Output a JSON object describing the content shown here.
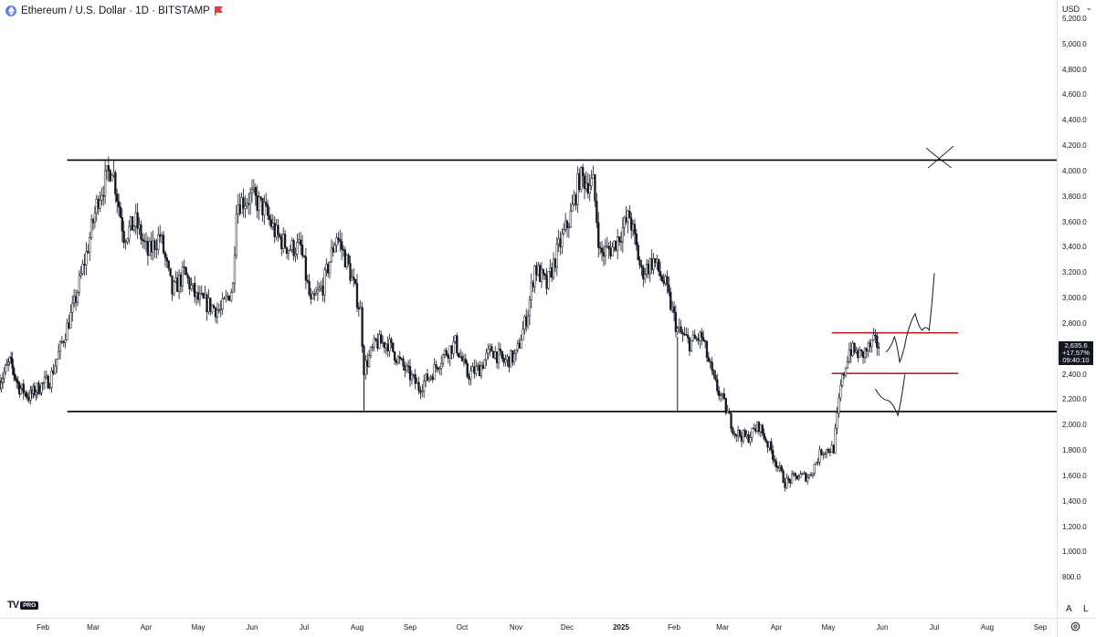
{
  "header": {
    "symbol_title": "Ethereum / U.S. Dollar · 1D · BITSTAMP",
    "symbol_icon": "ethereum-icon",
    "flag_icon": "flag-icon",
    "flag_color": "#f23645"
  },
  "price_axis": {
    "currency": "USD",
    "ticks": [
      "5,200.0",
      "5,000.0",
      "4,800.0",
      "4,600.0",
      "4,400.0",
      "4,200.0",
      "4,000.0",
      "3,800.0",
      "3,600.0",
      "3,400.0",
      "3,200.0",
      "3,000.0",
      "2,800.0",
      "2,600.0",
      "2,400.0",
      "2,200.0",
      "2,000.0",
      "1,800.0",
      "1,600.0",
      "1,400.0",
      "1,200.0",
      "1,000.0",
      "800.0"
    ],
    "last_price": "2,635.6",
    "last_change": "+17.57%",
    "countdown": "09:40:10"
  },
  "time_axis": {
    "ticks": [
      {
        "label": "Feb",
        "bold": false
      },
      {
        "label": "Mar",
        "bold": false
      },
      {
        "label": "Apr",
        "bold": false
      },
      {
        "label": "May",
        "bold": false
      },
      {
        "label": "Jun",
        "bold": false
      },
      {
        "label": "Jul",
        "bold": false
      },
      {
        "label": "Aug",
        "bold": false
      },
      {
        "label": "Sep",
        "bold": false
      },
      {
        "label": "Oct",
        "bold": false
      },
      {
        "label": "Nov",
        "bold": false
      },
      {
        "label": "Dec",
        "bold": false
      },
      {
        "label": "2025",
        "bold": true
      },
      {
        "label": "Feb",
        "bold": false
      },
      {
        "label": "Mar",
        "bold": false
      },
      {
        "label": "Apr",
        "bold": false
      },
      {
        "label": "May",
        "bold": false
      },
      {
        "label": "Jun",
        "bold": false
      },
      {
        "label": "Jul",
        "bold": false
      },
      {
        "label": "Aug",
        "bold": false
      },
      {
        "label": "Sep",
        "bold": false
      }
    ]
  },
  "bottom_controls": {
    "auto_label": "A",
    "log_label": "L",
    "settings_icon": "settings-icon"
  },
  "branding": {
    "logo_mark": "TV",
    "logo_badge": "PRO"
  },
  "chart_data": {
    "type": "candlestick",
    "title": "Ethereum / U.S. Dollar · 1D · BITSTAMP",
    "y_axis_unit": "USD",
    "ylim": [
      700,
      5300
    ],
    "xlim": [
      "2024-01-01",
      "2025-09-15"
    ],
    "grid": false,
    "series": [
      {
        "name": "ETH/USD",
        "close_path": [
          {
            "date": "2024-01-01",
            "price": 2350
          },
          {
            "date": "2024-01-08",
            "price": 2500
          },
          {
            "date": "2024-01-15",
            "price": 2300
          },
          {
            "date": "2024-01-22",
            "price": 2230
          },
          {
            "date": "2024-01-29",
            "price": 2300
          },
          {
            "date": "2024-02-05",
            "price": 2360
          },
          {
            "date": "2024-02-12",
            "price": 2650
          },
          {
            "date": "2024-02-19",
            "price": 2950
          },
          {
            "date": "2024-02-26",
            "price": 3350
          },
          {
            "date": "2024-03-04",
            "price": 3800
          },
          {
            "date": "2024-03-12",
            "price": 4050
          },
          {
            "date": "2024-03-19",
            "price": 3500
          },
          {
            "date": "2024-03-26",
            "price": 3600
          },
          {
            "date": "2024-04-02",
            "price": 3350
          },
          {
            "date": "2024-04-09",
            "price": 3500
          },
          {
            "date": "2024-04-16",
            "price": 3050
          },
          {
            "date": "2024-04-23",
            "price": 3200
          },
          {
            "date": "2024-04-30",
            "price": 3000
          },
          {
            "date": "2024-05-07",
            "price": 2950
          },
          {
            "date": "2024-05-14",
            "price": 2900
          },
          {
            "date": "2024-05-21",
            "price": 3100
          },
          {
            "date": "2024-05-23",
            "price": 3750
          },
          {
            "date": "2024-06-01",
            "price": 3800
          },
          {
            "date": "2024-06-08",
            "price": 3700
          },
          {
            "date": "2024-06-15",
            "price": 3500
          },
          {
            "date": "2024-06-22",
            "price": 3400
          },
          {
            "date": "2024-06-29",
            "price": 3400
          },
          {
            "date": "2024-07-05",
            "price": 2950
          },
          {
            "date": "2024-07-12",
            "price": 3100
          },
          {
            "date": "2024-07-20",
            "price": 3500
          },
          {
            "date": "2024-07-27",
            "price": 3250
          },
          {
            "date": "2024-08-03",
            "price": 2900
          },
          {
            "date": "2024-08-05",
            "price": 2450
          },
          {
            "date": "2024-08-12",
            "price": 2650
          },
          {
            "date": "2024-08-19",
            "price": 2650
          },
          {
            "date": "2024-08-26",
            "price": 2500
          },
          {
            "date": "2024-09-06",
            "price": 2300
          },
          {
            "date": "2024-09-13",
            "price": 2400
          },
          {
            "date": "2024-09-20",
            "price": 2550
          },
          {
            "date": "2024-09-27",
            "price": 2650
          },
          {
            "date": "2024-10-04",
            "price": 2400
          },
          {
            "date": "2024-10-11",
            "price": 2450
          },
          {
            "date": "2024-10-18",
            "price": 2600
          },
          {
            "date": "2024-10-25",
            "price": 2500
          },
          {
            "date": "2024-11-01",
            "price": 2550
          },
          {
            "date": "2024-11-08",
            "price": 2900
          },
          {
            "date": "2024-11-12",
            "price": 3250
          },
          {
            "date": "2024-11-19",
            "price": 3100
          },
          {
            "date": "2024-11-26",
            "price": 3400
          },
          {
            "date": "2024-12-03",
            "price": 3650
          },
          {
            "date": "2024-12-08",
            "price": 3950
          },
          {
            "date": "2024-12-16",
            "price": 3900
          },
          {
            "date": "2024-12-20",
            "price": 3350
          },
          {
            "date": "2024-12-27",
            "price": 3400
          },
          {
            "date": "2025-01-06",
            "price": 3650
          },
          {
            "date": "2025-01-13",
            "price": 3200
          },
          {
            "date": "2025-01-20",
            "price": 3300
          },
          {
            "date": "2025-01-27",
            "price": 3100
          },
          {
            "date": "2025-02-03",
            "price": 2750
          },
          {
            "date": "2025-02-10",
            "price": 2650
          },
          {
            "date": "2025-02-17",
            "price": 2700
          },
          {
            "date": "2025-02-24",
            "price": 2350
          },
          {
            "date": "2025-03-01",
            "price": 2200
          },
          {
            "date": "2025-03-08",
            "price": 1950
          },
          {
            "date": "2025-03-15",
            "price": 1900
          },
          {
            "date": "2025-03-22",
            "price": 2000
          },
          {
            "date": "2025-03-29",
            "price": 1800
          },
          {
            "date": "2025-04-06",
            "price": 1550
          },
          {
            "date": "2025-04-13",
            "price": 1600
          },
          {
            "date": "2025-04-20",
            "price": 1600
          },
          {
            "date": "2025-04-27",
            "price": 1800
          },
          {
            "date": "2025-05-04",
            "price": 1820
          },
          {
            "date": "2025-05-08",
            "price": 2300
          },
          {
            "date": "2025-05-13",
            "price": 2600
          },
          {
            "date": "2025-05-20",
            "price": 2550
          },
          {
            "date": "2025-05-27",
            "price": 2650
          },
          {
            "date": "2025-05-30",
            "price": 2635.6
          }
        ]
      }
    ],
    "annotations": {
      "horizontal_lines": [
        {
          "price": 4090,
          "from": "2024-02-15",
          "to": "2025-09-15",
          "color": "#000000"
        },
        {
          "price": 2110,
          "from": "2024-02-15",
          "to": "2025-09-15",
          "color": "#000000"
        },
        {
          "price": 2730,
          "from": "2025-05-03",
          "to": "2025-07-15",
          "color": "#b22222"
        },
        {
          "price": 2410,
          "from": "2025-05-03",
          "to": "2025-07-15",
          "color": "#b22222"
        }
      ],
      "sketch_path_up": [
        {
          "date": "2025-06-03",
          "price": 2580
        },
        {
          "date": "2025-06-08",
          "price": 2700
        },
        {
          "date": "2025-06-11",
          "price": 2500
        },
        {
          "date": "2025-06-15",
          "price": 2700
        },
        {
          "date": "2025-06-20",
          "price": 2880
        },
        {
          "date": "2025-06-24",
          "price": 2750
        },
        {
          "date": "2025-06-28",
          "price": 2750
        },
        {
          "date": "2025-07-01",
          "price": 3200
        }
      ],
      "sketch_path_down": [
        {
          "date": "2025-05-28",
          "price": 2290
        },
        {
          "date": "2025-06-04",
          "price": 2200
        },
        {
          "date": "2025-06-10",
          "price": 2080
        },
        {
          "date": "2025-06-14",
          "price": 2400
        }
      ],
      "x_mark": {
        "date": "2025-07-01",
        "price": 4100
      }
    }
  }
}
